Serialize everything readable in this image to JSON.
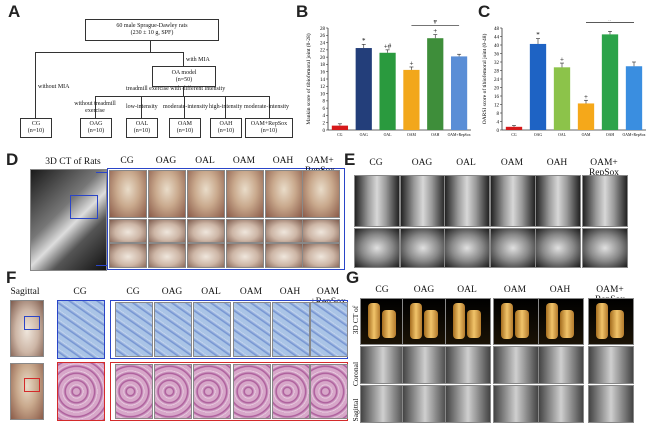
{
  "panels": {
    "a": "A",
    "b": "B",
    "c": "C",
    "d": "D",
    "e": "E",
    "f": "F",
    "g": "G"
  },
  "flow": {
    "top": "60 male Sprague-Dawley rats",
    "top2": "(230 ± 10 g, SPF)",
    "without_mia": "without MIA",
    "with_mia": "with MIA",
    "oa_model": "OA model",
    "oa_model_n": "(n=50)",
    "treadmill": "treadmill exercise with different intensity",
    "sub": [
      "without treadmill exercise",
      "low-intensity",
      "moderate-intensity",
      "high-intensity",
      "moderate-intensity"
    ],
    "groups": [
      {
        "name": "CG",
        "n": "(n=10)"
      },
      {
        "name": "OAG",
        "n": "(n=10)"
      },
      {
        "name": "OAL",
        "n": "(n=10)"
      },
      {
        "name": "OAM",
        "n": "(n=10)"
      },
      {
        "name": "OAH",
        "n": "(n=10)"
      },
      {
        "name": "OAM+RepSox",
        "n": "(n=10)"
      }
    ]
  },
  "chart_data": [
    {
      "type": "bar",
      "ylabel": "Mankin score of tibiofemoral joint (0-28)",
      "ylim": [
        0,
        28
      ],
      "yticks": [
        0,
        2,
        4,
        6,
        8,
        10,
        12,
        14,
        16,
        18,
        20,
        22,
        24,
        26,
        28
      ],
      "categories": [
        "CG",
        "OAG",
        "OAL",
        "OAM",
        "OAH",
        "OAM+RepSox"
      ],
      "values": [
        1.2,
        22.5,
        21.2,
        16.5,
        25.2,
        20.2
      ],
      "errors": [
        0.5,
        1.0,
        0.8,
        0.8,
        1.0,
        0.6
      ],
      "marks": [
        "",
        "*",
        "+#",
        "+",
        "+",
        ""
      ],
      "bracket": "#",
      "colors": [
        "#d6191b",
        "#233e7a",
        "#2a9a3e",
        "#f2a71b",
        "#3e8e3a",
        "#5a8ed6"
      ]
    },
    {
      "type": "bar",
      "ylabel": "OARSI score of tibiofemoral joint (0-48)",
      "ylim": [
        0,
        48
      ],
      "yticks": [
        0,
        4,
        8,
        12,
        16,
        20,
        24,
        28,
        32,
        36,
        40,
        44,
        48
      ],
      "categories": [
        "CG",
        "OAG",
        "OAL",
        "OAM",
        "OAH",
        "OAM+RepSox"
      ],
      "values": [
        1.5,
        40.5,
        29.5,
        12.5,
        45.0,
        30.0
      ],
      "errors": [
        0.6,
        2.5,
        2.0,
        1.5,
        1.4,
        2.0
      ],
      "marks": [
        "",
        "*",
        "+",
        "+",
        "",
        ""
      ],
      "bracket": "#",
      "colors": [
        "#d6191b",
        "#1e63c4",
        "#8cc34a",
        "#f5a81a",
        "#2ca34a",
        "#3a8ee0"
      ]
    }
  ],
  "d": {
    "ct_label": "3D CT of Rats",
    "cols": [
      "CG",
      "OAG",
      "OAL",
      "OAM",
      "OAH",
      "OAM+ RepSox"
    ]
  },
  "e": {
    "cols": [
      "CG",
      "OAG",
      "OAL",
      "OAM",
      "OAH",
      "OAM+ RepSox"
    ]
  },
  "f": {
    "cols": [
      "Sagittal",
      "CG",
      "CG",
      "OAG",
      "OAL",
      "OAM",
      "OAH",
      "OAM +RepSox"
    ]
  },
  "g": {
    "cols": [
      "CG",
      "OAG",
      "OAL",
      "OAM",
      "OAH",
      "OAM+ RepSox"
    ],
    "rows": [
      "3D CT of Knee",
      "Coronal",
      "Sagittal"
    ]
  }
}
